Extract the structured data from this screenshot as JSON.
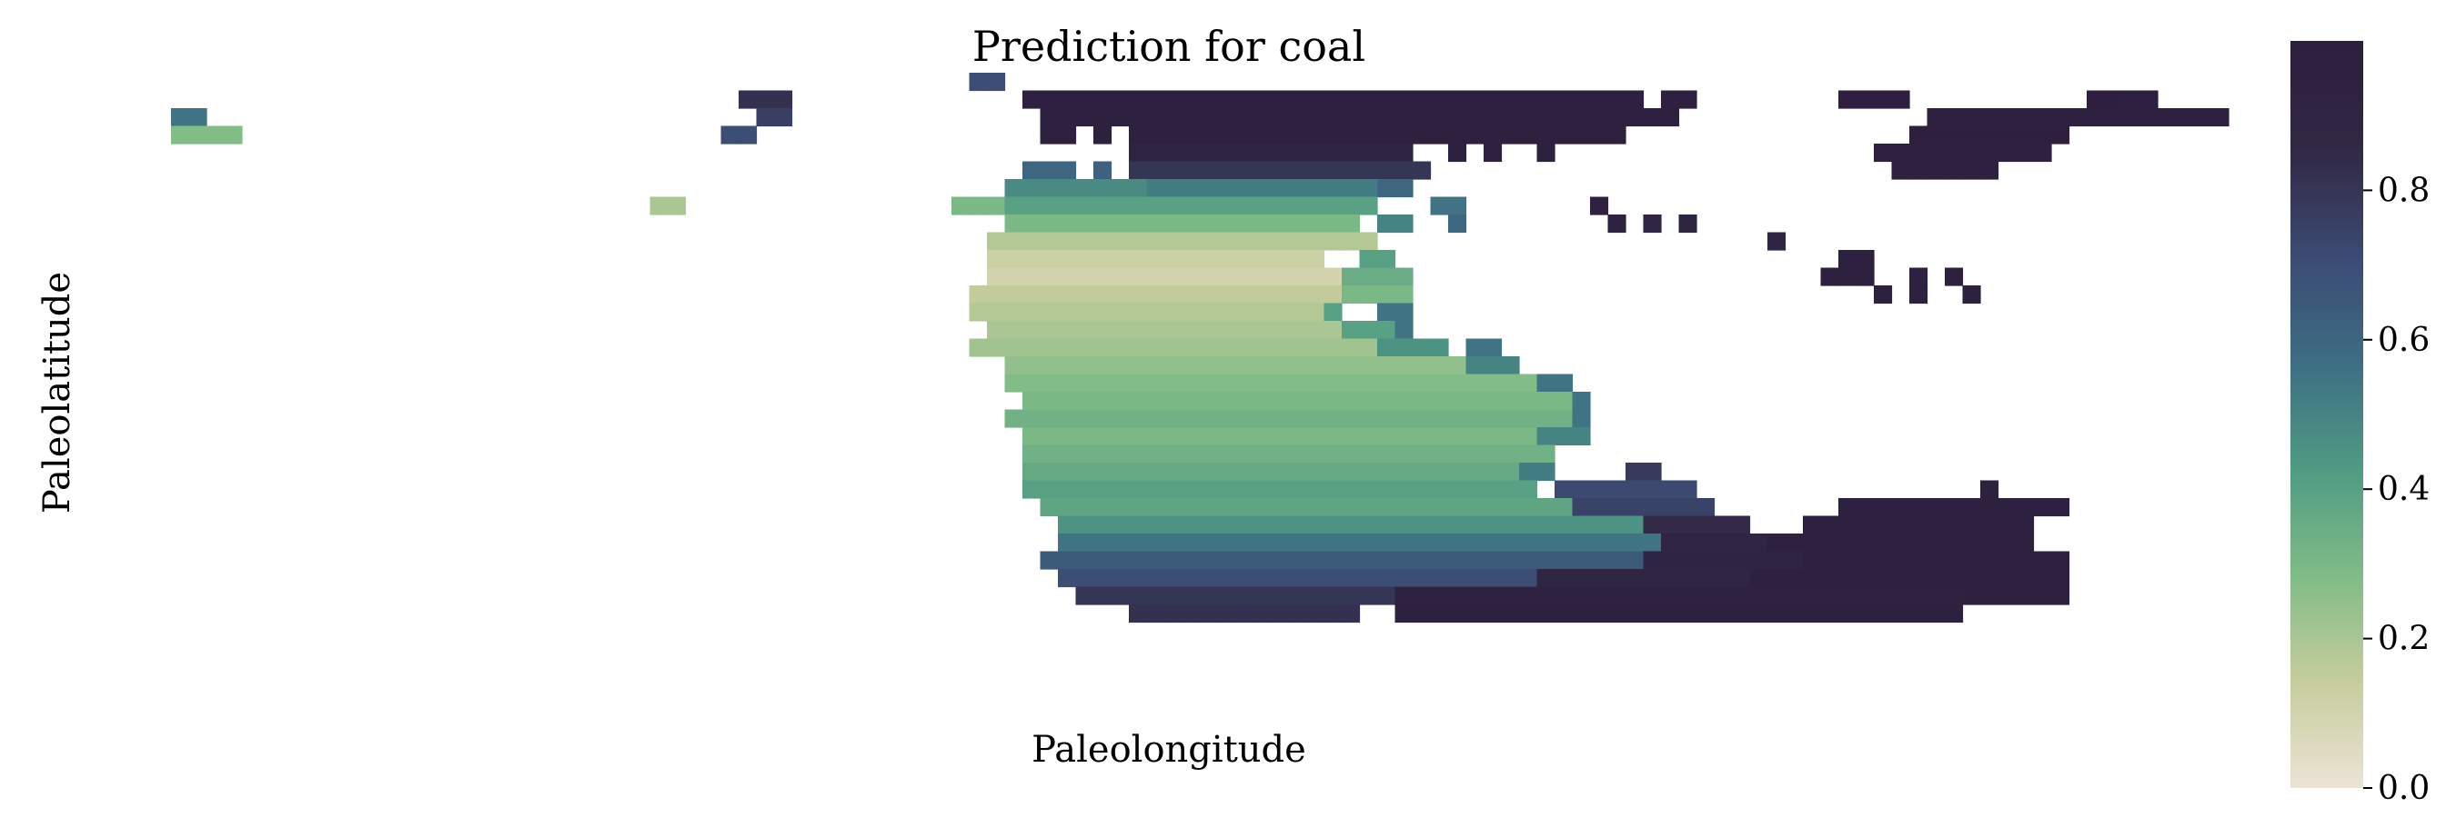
{
  "chart_data": {
    "type": "heatmap",
    "title": "Prediction for coal",
    "xlabel": "Paleolongitude",
    "ylabel": "Paleolatitude",
    "grid": false,
    "colorbar": {
      "ticks": [
        "0.0",
        "0.2",
        "0.4",
        "0.6",
        "0.8"
      ],
      "tick_values": [
        0.0,
        0.2,
        0.4,
        0.6,
        0.8
      ],
      "range": [
        0,
        1
      ],
      "colormap_stops": [
        "#ece3d6",
        "#c6cd9c",
        "#7fbb86",
        "#4f9a83",
        "#3d6d84",
        "#3c4a72",
        "#312844",
        "#2d1e3e"
      ]
    },
    "cells_note": "rows top-to-bottom; each run = [start_col, end_col, value]",
    "rows": [
      [
        [
          49,
          50,
          0.7
        ]
      ],
      [
        [
          36,
          38,
          0.82
        ],
        [
          52,
          86,
          0.96
        ],
        [
          88,
          89,
          0.97
        ],
        [
          98,
          101,
          0.98
        ],
        [
          112,
          113,
          0.98
        ],
        [
          114,
          115,
          0.97
        ]
      ],
      [
        [
          4,
          5,
          0.55
        ],
        [
          37,
          38,
          0.76
        ],
        [
          53,
          88,
          0.96
        ],
        [
          103,
          119,
          0.97
        ]
      ],
      [
        [
          4,
          7,
          0.28
        ],
        [
          35,
          36,
          0.7
        ],
        [
          53,
          54,
          0.96
        ],
        [
          56,
          56,
          0.97
        ],
        [
          58,
          85,
          0.96
        ],
        [
          102,
          110,
          0.98
        ]
      ],
      [
        [
          58,
          73,
          0.92
        ],
        [
          76,
          76,
          0.97
        ],
        [
          78,
          78,
          0.97
        ],
        [
          81,
          81,
          0.97
        ],
        [
          100,
          109,
          0.97
        ]
      ],
      [
        [
          52,
          54,
          0.6
        ],
        [
          56,
          56,
          0.62
        ],
        [
          58,
          74,
          0.8
        ],
        [
          101,
          106,
          0.97
        ]
      ],
      [
        [
          51,
          58,
          0.48
        ],
        [
          59,
          71,
          0.52
        ],
        [
          72,
          73,
          0.6
        ]
      ],
      [
        [
          31,
          32,
          0.2
        ],
        [
          48,
          50,
          0.3
        ],
        [
          51,
          71,
          0.4
        ],
        [
          75,
          76,
          0.55
        ],
        [
          84,
          84,
          0.95
        ]
      ],
      [
        [
          51,
          70,
          0.3
        ],
        [
          72,
          73,
          0.5
        ],
        [
          76,
          76,
          0.6
        ],
        [
          85,
          85,
          0.95
        ],
        [
          87,
          87,
          0.88
        ],
        [
          89,
          89,
          0.92
        ]
      ],
      [
        [
          50,
          71,
          0.18
        ],
        [
          94,
          94,
          0.92
        ]
      ],
      [
        [
          50,
          68,
          0.12
        ],
        [
          71,
          72,
          0.4
        ],
        [
          98,
          99,
          0.96
        ]
      ],
      [
        [
          50,
          69,
          0.1
        ],
        [
          70,
          73,
          0.35
        ],
        [
          97,
          99,
          0.96
        ],
        [
          102,
          102,
          0.97
        ],
        [
          104,
          104,
          0.97
        ]
      ],
      [
        [
          49,
          69,
          0.15
        ],
        [
          70,
          73,
          0.3
        ],
        [
          100,
          100,
          0.96
        ],
        [
          102,
          102,
          0.97
        ],
        [
          105,
          105,
          0.97
        ]
      ],
      [
        [
          49,
          68,
          0.18
        ],
        [
          69,
          69,
          0.4
        ],
        [
          72,
          73,
          0.55
        ]
      ],
      [
        [
          50,
          69,
          0.2
        ],
        [
          70,
          72,
          0.4
        ],
        [
          73,
          73,
          0.55
        ]
      ],
      [
        [
          49,
          71,
          0.22
        ],
        [
          72,
          75,
          0.45
        ],
        [
          77,
          78,
          0.55
        ]
      ],
      [
        [
          51,
          76,
          0.25
        ],
        [
          77,
          79,
          0.5
        ]
      ],
      [
        [
          51,
          80,
          0.28
        ],
        [
          81,
          82,
          0.55
        ]
      ],
      [
        [
          52,
          82,
          0.3
        ],
        [
          83,
          83,
          0.55
        ]
      ],
      [
        [
          51,
          82,
          0.33
        ],
        [
          83,
          83,
          0.55
        ]
      ],
      [
        [
          52,
          80,
          0.3
        ],
        [
          81,
          83,
          0.5
        ]
      ],
      [
        [
          52,
          81,
          0.33
        ]
      ],
      [
        [
          52,
          79,
          0.36
        ],
        [
          80,
          81,
          0.52
        ],
        [
          86,
          87,
          0.78
        ]
      ],
      [
        [
          52,
          80,
          0.4
        ],
        [
          82,
          89,
          0.72
        ],
        [
          106,
          106,
          0.97
        ]
      ],
      [
        [
          53,
          82,
          0.38
        ],
        [
          83,
          90,
          0.75
        ],
        [
          98,
          110,
          0.97
        ]
      ],
      [
        [
          54,
          86,
          0.45
        ],
        [
          87,
          92,
          0.85
        ],
        [
          96,
          108,
          0.97
        ]
      ],
      [
        [
          54,
          87,
          0.55
        ],
        [
          88,
          93,
          0.9
        ],
        [
          94,
          108,
          0.97
        ]
      ],
      [
        [
          53,
          86,
          0.65
        ],
        [
          87,
          95,
          0.92
        ],
        [
          96,
          110,
          0.97
        ]
      ],
      [
        [
          54,
          80,
          0.7
        ],
        [
          81,
          92,
          0.88
        ],
        [
          93,
          110,
          0.97
        ]
      ],
      [
        [
          55,
          72,
          0.8
        ],
        [
          73,
          104,
          0.95
        ],
        [
          105,
          110,
          0.97
        ]
      ],
      [
        [
          58,
          70,
          0.82
        ],
        [
          73,
          104,
          0.96
        ]
      ]
    ]
  }
}
